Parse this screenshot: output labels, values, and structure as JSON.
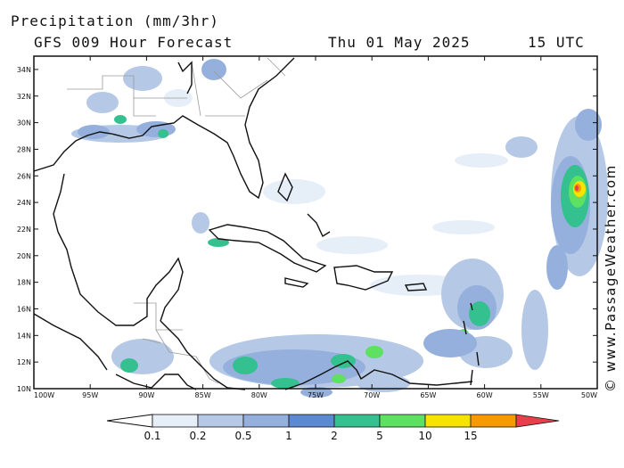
{
  "header": {
    "title": "Precipitation (mm/3hr)",
    "subtitle": "GFS 009 Hour Forecast",
    "date": "Thu 01 May 2025",
    "time": "15 UTC"
  },
  "credit": "© www.PassageWeather.com",
  "map": {
    "lon_range": [
      -100,
      -50
    ],
    "lat_range": [
      10,
      35
    ],
    "lon_ticks": [
      "100W",
      "95W",
      "90W",
      "85W",
      "80W",
      "75W",
      "70W",
      "65W",
      "60W",
      "55W",
      "50W"
    ],
    "lat_ticks": [
      "34N",
      "32N",
      "30N",
      "28N",
      "26N",
      "24N",
      "22N",
      "20N",
      "18N",
      "16N",
      "14N",
      "12N",
      "10N"
    ]
  },
  "colorbar": {
    "labels": [
      "0.1",
      "0.2",
      "0.5",
      "1",
      "2",
      "5",
      "10",
      "15"
    ],
    "colors": [
      "#e6eef8",
      "#b5c8e6",
      "#95b0dc",
      "#5d88d2",
      "#35c090",
      "#5ee060",
      "#f6e300",
      "#f79a00",
      "#e8404a"
    ]
  },
  "colors": {
    "land": "#111111",
    "border": "#9a9a9a"
  }
}
